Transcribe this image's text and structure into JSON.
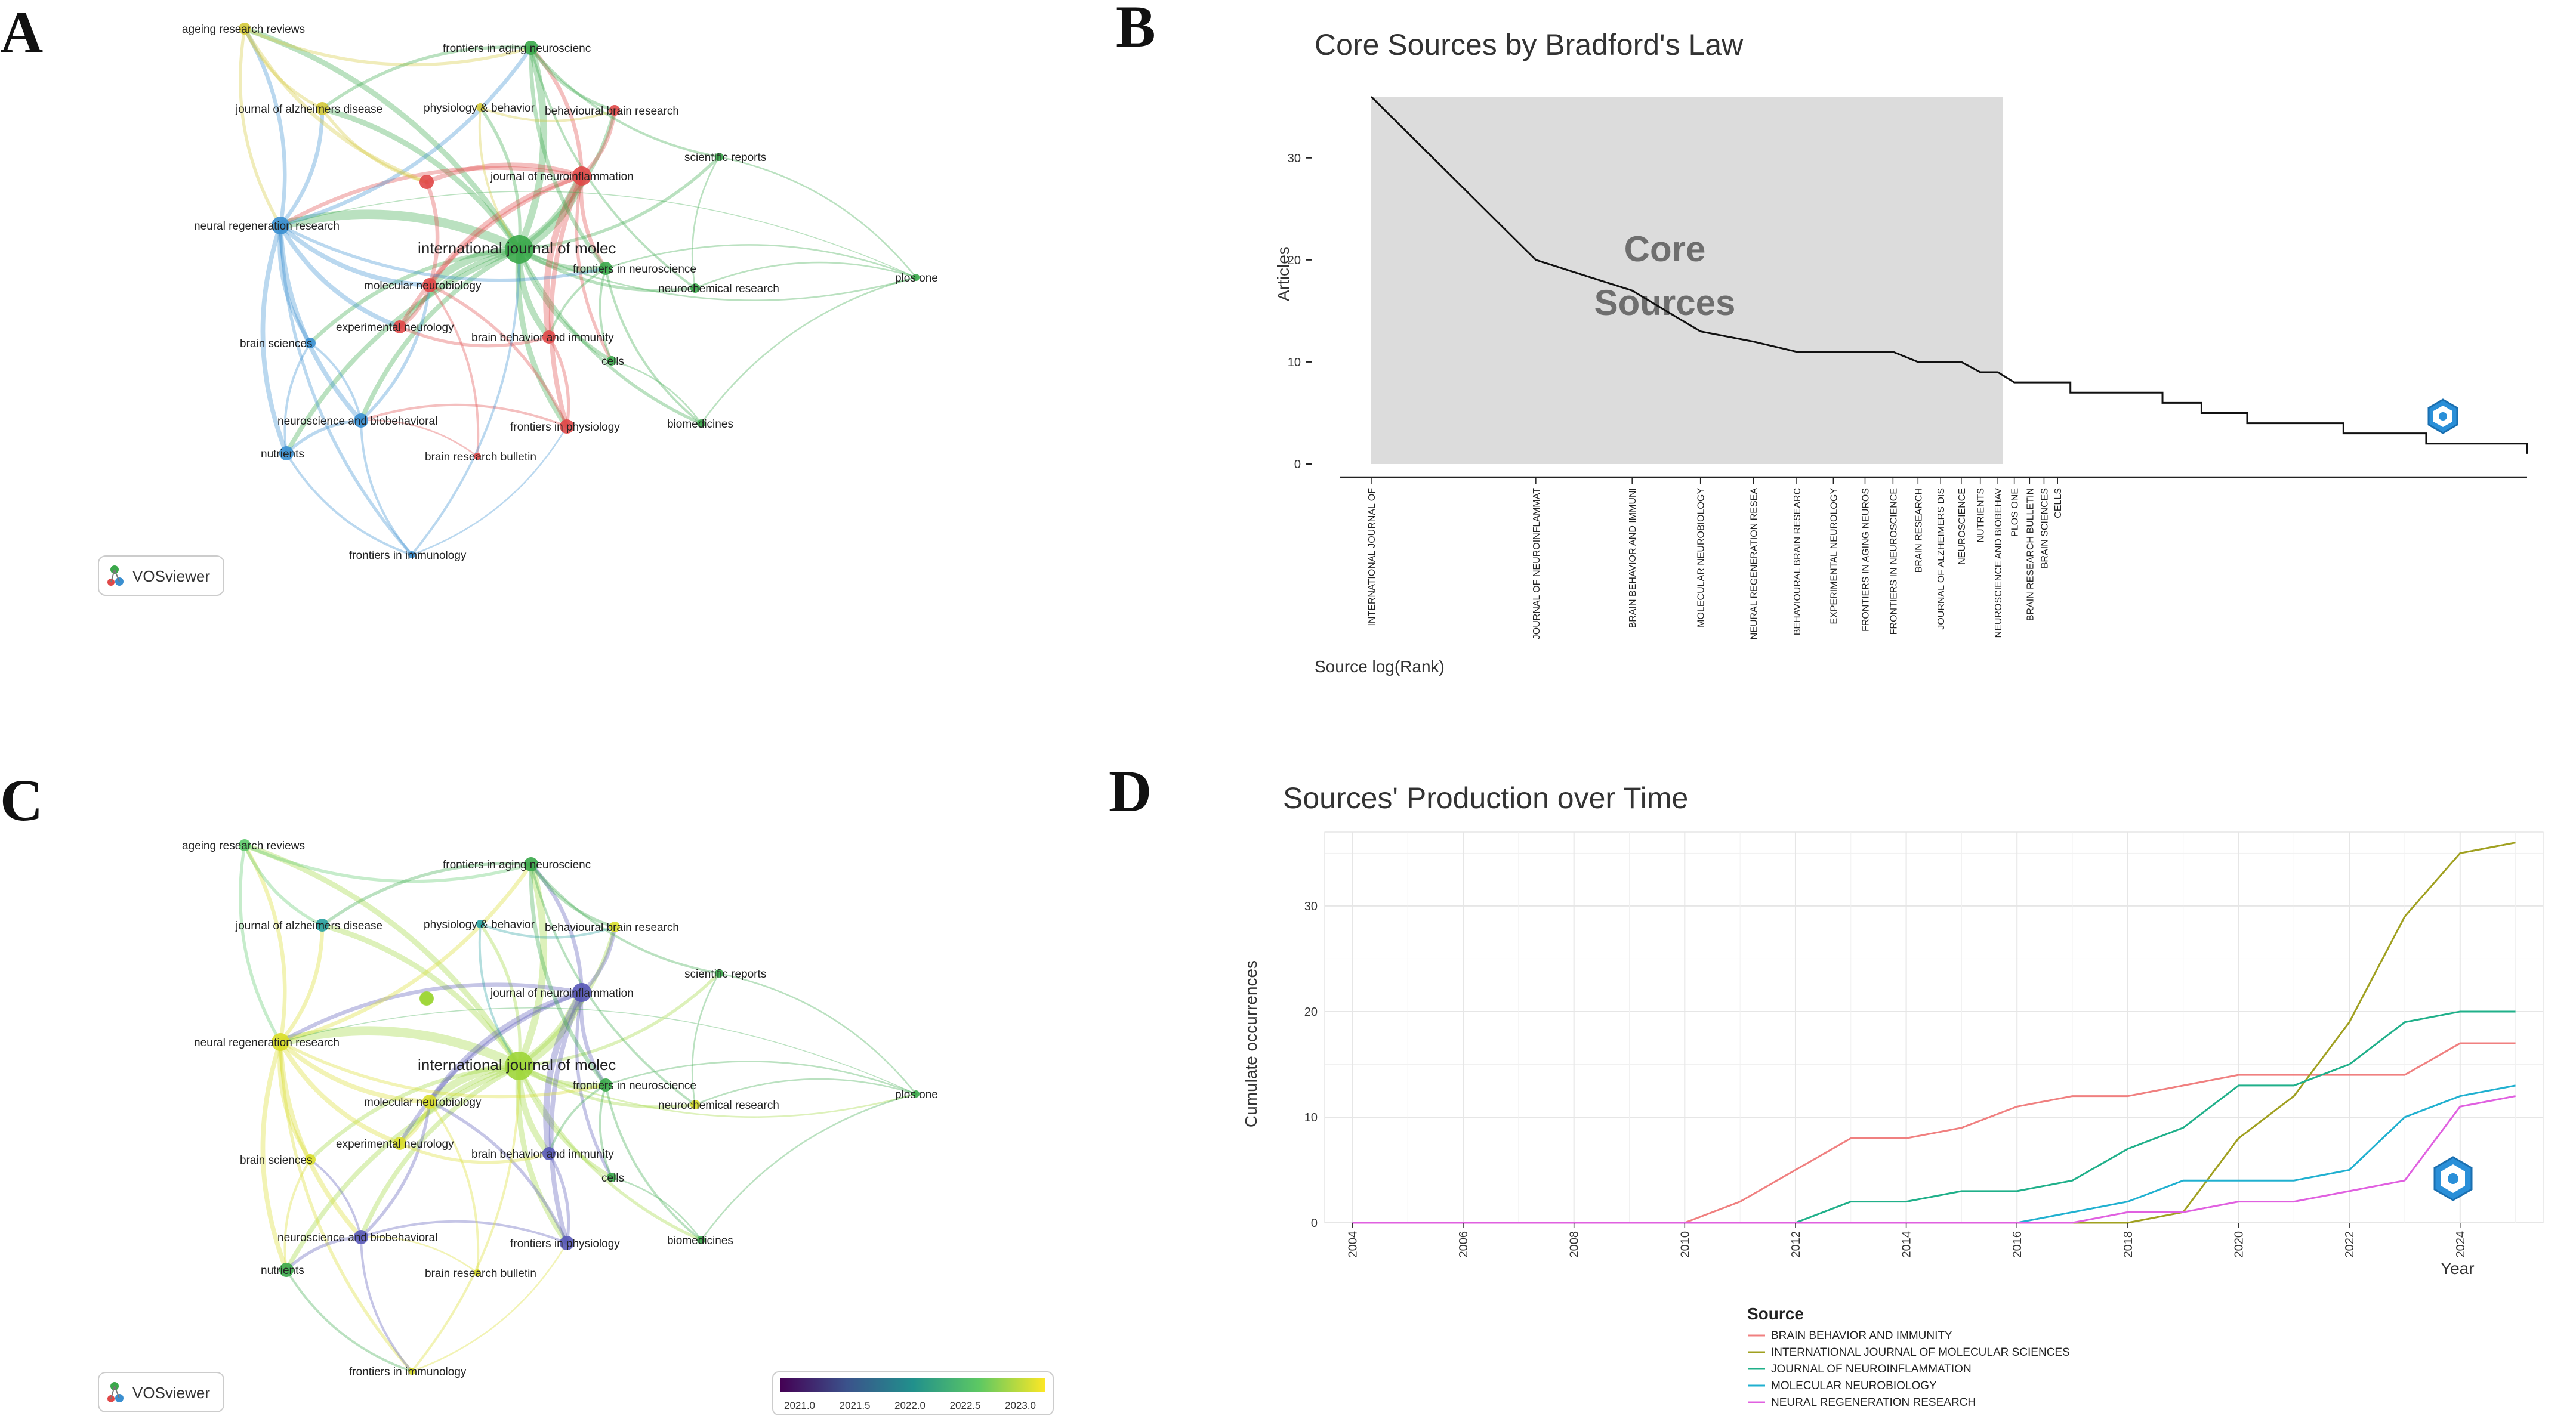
{
  "panels": {
    "A": "A",
    "B": "B",
    "C": "C",
    "D": "D"
  },
  "network": {
    "brand": "VOSviewer",
    "nodes": [
      {
        "id": "ageing",
        "label": "ageing research reviews",
        "colorA": "#d4c93a",
        "colorC": "#5cc86a",
        "size": 10
      },
      {
        "id": "fan",
        "label": "frontiers in aging neuroscienc",
        "colorA": "#3aa84a",
        "colorC": "#3aa84a",
        "size": 12
      },
      {
        "id": "jad",
        "label": "journal of alzheimers disease",
        "colorA": "#d4c93a",
        "colorC": "#27a0a0",
        "size": 11
      },
      {
        "id": "phys",
        "label": "physiology & behavior",
        "colorA": "#d4c93a",
        "colorC": "#27a0a0",
        "size": 7
      },
      {
        "id": "bbr",
        "label": "behavioural brain research",
        "colorA": "#e04848",
        "colorC": "#d9de2a",
        "size": 9
      },
      {
        "id": "jni",
        "label": "journal of neuroinflammation",
        "colorA": "#e04848",
        "colorC": "#5858b8",
        "size": 16
      },
      {
        "id": "sci",
        "label": "scientific reports",
        "colorA": "#3aa84a",
        "colorC": "#3aa84a",
        "size": 7
      },
      {
        "id": "nrr",
        "label": "neural regeneration research",
        "colorA": "#3a8fd0",
        "colorC": "#d9de2a",
        "size": 15
      },
      {
        "id": "ijms",
        "label": "international journal of molec",
        "colorA": "#3aa84a",
        "colorC": "#9fd63a",
        "size": 24
      },
      {
        "id": "fin",
        "label": "frontiers in neuroscience",
        "colorA": "#3aa84a",
        "colorC": "#3aa84a",
        "size": 11
      },
      {
        "id": "mol",
        "label": "molecular neurobiology",
        "colorA": "#e04848",
        "colorC": "#d9de2a",
        "size": 12
      },
      {
        "id": "neuchem",
        "label": "neurochemical research",
        "colorA": "#3aa84a",
        "colorC": "#d9de2a",
        "size": 8
      },
      {
        "id": "plos",
        "label": "plos one",
        "colorA": "#3aa84a",
        "colorC": "#3aa84a",
        "size": 6
      },
      {
        "id": "exp",
        "label": "experimental neurology",
        "colorA": "#e04848",
        "colorC": "#d9de2a",
        "size": 11
      },
      {
        "id": "bbi",
        "label": "brain behavior and immunity",
        "colorA": "#e04848",
        "colorC": "#5858b8",
        "size": 11
      },
      {
        "id": "bsci",
        "label": "brain sciences",
        "colorA": "#3a8fd0",
        "colorC": "#d9de2a",
        "size": 9
      },
      {
        "id": "cells",
        "label": "cells",
        "colorA": "#3aa84a",
        "colorC": "#3aa84a",
        "size": 8
      },
      {
        "id": "nbr",
        "label": "neuroscience and biobehavioral",
        "colorA": "#3a8fd0",
        "colorC": "#5858b8",
        "size": 12
      },
      {
        "id": "fip",
        "label": "frontiers in physiology",
        "colorA": "#e04848",
        "colorC": "#5858b8",
        "size": 12
      },
      {
        "id": "biomed",
        "label": "biomedicines",
        "colorA": "#3aa84a",
        "colorC": "#3aa84a",
        "size": 7
      },
      {
        "id": "nutr",
        "label": "nutrients",
        "colorA": "#3a8fd0",
        "colorC": "#3aa84a",
        "size": 12
      },
      {
        "id": "brb",
        "label": "brain research bulletin",
        "colorA": "#e04848",
        "colorC": "#d9de2a",
        "size": 6
      },
      {
        "id": "fii",
        "label": "frontiers in immunology",
        "colorA": "#3a8fd0",
        "colorC": "#d9de2a",
        "size": 6
      },
      {
        "id": "extraA",
        "label": "",
        "colorA": "#e04848",
        "colorC": "#9fd63a",
        "size": 12
      }
    ],
    "colorbar": {
      "ticks": [
        "2021.0",
        "2021.5",
        "2022.0",
        "2022.5",
        "2023.0"
      ],
      "colors": [
        "#440154",
        "#3b528b",
        "#21908c",
        "#5dc863",
        "#fde725"
      ]
    }
  },
  "chart_data": [
    {
      "type": "line",
      "title": "Core Sources by Bradford's Law",
      "xlabel": "Source log(Rank)",
      "ylabel": "Articles",
      "annotation": "Core\nSources",
      "yticks": [
        0,
        10,
        20,
        30
      ],
      "ylim": [
        0,
        37
      ],
      "core_zone_max_rank": 14,
      "sources": [
        "INTERNATIONAL JOURNAL OF",
        "JOURNAL OF NEUROINFLAMMAT",
        "BRAIN BEHAVIOR AND IMMUNI",
        "MOLECULAR NEUROBIOLOGY",
        "NEURAL REGENERATION RESEA",
        "BEHAVIOURAL BRAIN RESEARC",
        "EXPERIMENTAL NEUROLOGY",
        "FRONTIERS IN AGING NEUROS",
        "FRONTIERS IN NEUROSCIENCE",
        "BRAIN RESEARCH",
        "JOURNAL OF ALZHEIMERS DIS",
        "NEUROSCIENCE",
        "NUTRIENTS",
        "NEUROSCIENCE AND BIOBEHAV",
        "PLOS ONE",
        "BRAIN RESEARCH BULLETIN",
        "BRAIN SCIENCES",
        "CELLS"
      ],
      "articles": [
        36,
        20,
        17,
        13,
        12,
        11,
        11,
        11,
        11,
        10,
        10,
        10,
        9,
        9,
        8,
        8,
        8,
        8
      ],
      "tail_ranks": [
        19,
        22,
        25,
        28,
        30,
        33,
        36,
        40,
        45,
        50,
        60,
        70,
        85,
        100,
        115,
        130
      ],
      "tail_articles": [
        7,
        7,
        7,
        6,
        6,
        5,
        5,
        4,
        4,
        4,
        3,
        3,
        2,
        2,
        2,
        1
      ]
    },
    {
      "type": "line",
      "title": "Sources' Production over Time",
      "xlabel": "Year",
      "ylabel": "Cumulate occurrences",
      "x": [
        2004,
        2005,
        2006,
        2007,
        2008,
        2009,
        2010,
        2011,
        2012,
        2013,
        2014,
        2015,
        2016,
        2017,
        2018,
        2019,
        2020,
        2021,
        2022,
        2023,
        2024,
        2025
      ],
      "xticks": [
        2004,
        2006,
        2008,
        2010,
        2012,
        2014,
        2016,
        2018,
        2020,
        2022,
        2024
      ],
      "yticks": [
        0,
        10,
        20,
        30
      ],
      "ylim": [
        0,
        37
      ],
      "legend_title": "Source",
      "series": [
        {
          "name": "BRAIN BEHAVIOR AND IMMUNITY",
          "color": "#f08080",
          "values": [
            0,
            0,
            0,
            0,
            0,
            0,
            0,
            2,
            5,
            8,
            8,
            9,
            11,
            12,
            12,
            13,
            14,
            14,
            14,
            14,
            17,
            17
          ]
        },
        {
          "name": "INTERNATIONAL JOURNAL OF MOLECULAR SCIENCES",
          "color": "#a0a020",
          "values": [
            0,
            0,
            0,
            0,
            0,
            0,
            0,
            0,
            0,
            0,
            0,
            0,
            0,
            0,
            0,
            1,
            8,
            12,
            19,
            29,
            35,
            36
          ]
        },
        {
          "name": "JOURNAL OF NEUROINFLAMMATION",
          "color": "#20b08a",
          "values": [
            0,
            0,
            0,
            0,
            0,
            0,
            0,
            0,
            0,
            2,
            2,
            3,
            3,
            4,
            7,
            9,
            13,
            13,
            15,
            19,
            20,
            20
          ]
        },
        {
          "name": "MOLECULAR NEUROBIOLOGY",
          "color": "#20b0d0",
          "values": [
            0,
            0,
            0,
            0,
            0,
            0,
            0,
            0,
            0,
            0,
            0,
            0,
            0,
            1,
            2,
            4,
            4,
            4,
            5,
            10,
            12,
            13
          ]
        },
        {
          "name": "NEURAL REGENERATION RESEARCH",
          "color": "#e060e0",
          "values": [
            0,
            0,
            0,
            0,
            0,
            0,
            0,
            0,
            0,
            0,
            0,
            0,
            0,
            0,
            1,
            1,
            2,
            2,
            3,
            4,
            11,
            12
          ]
        }
      ]
    }
  ]
}
